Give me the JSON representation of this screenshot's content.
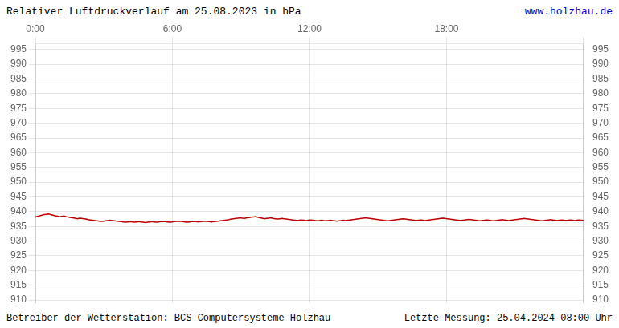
{
  "chart_data": {
    "type": "line",
    "title": "Relativer Luftdruckverlauf am 25.08.2023 in hPa",
    "annotations": [
      {
        "text": "www.holzhau.de",
        "color": "#0000cc"
      },
      {
        "text": "Betreiber der Wetterstation: BCS Computersysteme Holzhau"
      },
      {
        "text": "Letzte Messung: 25.04.2024 08:00 Uhr"
      }
    ],
    "color": "#bb0000",
    "grid": true,
    "xlim": [
      0,
      1440
    ],
    "xticks": [
      {
        "value": 0,
        "label": "0:00"
      },
      {
        "value": 360,
        "label": "6:00"
      },
      {
        "value": 720,
        "label": "12:00"
      },
      {
        "value": 1080,
        "label": "18:00"
      },
      {
        "value": 1440,
        "label": null
      }
    ],
    "ylim": [
      909,
      997
    ],
    "yticks": [
      910,
      915,
      920,
      925,
      930,
      935,
      940,
      945,
      950,
      955,
      960,
      965,
      970,
      975,
      980,
      985,
      990,
      995
    ],
    "y2lim": [
      909,
      997
    ],
    "y2ticks": [
      910,
      915,
      920,
      925,
      930,
      935,
      940,
      945,
      950,
      955,
      960,
      965,
      970,
      975,
      980,
      985,
      990,
      995
    ],
    "x": [
      0,
      5.78,
      11.57,
      17.35,
      23.13,
      28.92,
      34.7,
      40.48,
      46.27,
      52.05,
      57.83,
      63.61,
      69.4,
      75.18,
      80.96,
      86.75,
      92.53,
      98.31,
      104.1,
      109.88,
      115.66,
      121.45,
      127.23,
      133.01,
      138.8,
      144.58,
      150.36,
      156.14,
      161.93,
      167.71,
      173.49,
      179.28,
      185.06,
      190.84,
      196.63,
      202.41,
      208.19,
      213.98,
      219.76,
      225.54,
      231.33,
      237.11,
      242.89,
      248.67,
      254.46,
      260.24,
      266.02,
      271.81,
      277.59,
      283.37,
      289.16,
      294.94,
      300.72,
      306.51,
      312.29,
      318.07,
      323.86,
      329.64,
      335.42,
      341.2,
      346.99,
      352.77,
      358.55,
      364.34,
      370.12,
      375.9,
      381.69,
      387.47,
      393.25,
      399.04,
      404.82,
      410.6,
      416.39,
      422.17,
      427.95,
      433.73,
      439.52,
      445.3,
      451.08,
      456.87,
      462.65,
      468.43,
      474.22,
      480.0,
      485.78,
      491.57,
      497.35,
      503.13,
      508.92,
      514.7,
      520.48,
      526.27,
      532.05,
      537.83,
      543.61,
      549.4,
      555.18,
      560.96,
      566.75,
      572.53,
      578.31,
      584.1,
      589.88,
      595.66,
      601.45,
      607.23,
      613.01,
      618.8,
      624.58,
      630.36,
      636.14,
      641.93,
      647.71,
      653.49,
      659.28,
      665.06,
      670.84,
      676.63,
      682.41,
      688.19,
      693.98,
      699.76,
      705.54,
      711.33,
      717.11,
      722.89,
      728.67,
      734.46,
      740.24,
      746.02,
      751.81,
      757.59,
      763.37,
      769.16,
      774.94,
      780.72,
      786.51,
      792.29,
      798.07,
      803.86,
      809.64,
      815.42,
      821.2,
      826.99,
      832.77,
      838.55,
      844.34,
      850.12,
      855.9,
      861.69,
      867.47,
      873.25,
      879.04,
      884.82,
      890.6,
      896.39,
      902.17,
      907.95,
      913.73,
      919.52,
      925.3,
      931.08,
      936.87,
      942.65,
      948.43,
      954.22,
      960.0,
      965.78,
      971.57,
      977.35,
      983.13,
      988.92,
      994.7,
      1000.48,
      1006.27,
      1012.05,
      1017.83,
      1023.61,
      1029.4,
      1035.18,
      1040.96,
      1046.75,
      1052.53,
      1058.31,
      1064.1,
      1069.88,
      1075.66,
      1081.45,
      1087.23,
      1093.01,
      1098.8,
      1104.58,
      1110.36,
      1116.14,
      1121.93,
      1127.71,
      1133.49,
      1139.28,
      1145.06,
      1150.84,
      1156.63,
      1162.41,
      1168.19,
      1173.98,
      1179.76,
      1185.54,
      1191.33,
      1197.11,
      1202.89,
      1208.67,
      1214.46,
      1220.24,
      1226.02,
      1231.81,
      1237.59,
      1243.37,
      1249.16,
      1254.94,
      1260.72,
      1266.51,
      1272.29,
      1278.07,
      1283.86,
      1289.64,
      1295.42,
      1301.2,
      1306.99,
      1312.77,
      1318.55,
      1324.34,
      1330.12,
      1335.9,
      1341.69,
      1347.47,
      1353.25,
      1359.04,
      1364.82,
      1370.6,
      1376.39,
      1382.17,
      1387.95,
      1393.73,
      1399.52,
      1405.3,
      1411.08,
      1416.87,
      1422.65,
      1428.43,
      1434.22,
      1440
    ],
    "values": [
      938.2,
      938.4,
      938.6,
      938.8,
      939.0,
      939.1,
      939.2,
      939.0,
      938.8,
      938.6,
      938.5,
      938.3,
      938.4,
      938.5,
      938.3,
      938.2,
      938.0,
      937.9,
      937.8,
      937.6,
      937.8,
      937.7,
      937.6,
      937.5,
      937.3,
      937.2,
      937.1,
      937.0,
      936.9,
      936.8,
      936.7,
      936.8,
      936.9,
      937.0,
      937.1,
      937.0,
      936.9,
      936.8,
      936.7,
      936.6,
      936.5,
      936.4,
      936.5,
      936.6,
      936.5,
      936.4,
      936.5,
      936.6,
      936.5,
      936.4,
      936.3,
      936.4,
      936.5,
      936.6,
      936.5,
      936.4,
      936.5,
      936.6,
      936.7,
      936.6,
      936.5,
      936.4,
      936.5,
      936.6,
      936.7,
      936.8,
      936.7,
      936.6,
      936.5,
      936.4,
      936.5,
      936.6,
      936.7,
      936.6,
      936.5,
      936.6,
      936.7,
      936.8,
      936.7,
      936.6,
      936.5,
      936.6,
      936.7,
      936.8,
      936.9,
      937.0,
      937.1,
      937.2,
      937.3,
      937.5,
      937.6,
      937.7,
      937.8,
      937.9,
      937.8,
      937.7,
      937.9,
      938.0,
      938.1,
      938.2,
      938.3,
      938.1,
      937.9,
      937.8,
      937.6,
      937.7,
      937.8,
      937.9,
      937.7,
      937.6,
      937.5,
      937.6,
      937.7,
      937.6,
      937.5,
      937.4,
      937.3,
      937.2,
      937.1,
      937.0,
      937.1,
      937.2,
      937.1,
      937.0,
      937.1,
      937.2,
      937.1,
      937.0,
      936.9,
      937.0,
      937.1,
      937.0,
      936.9,
      937.0,
      937.1,
      937.0,
      936.9,
      936.8,
      936.9,
      937.0,
      937.1,
      937.0,
      937.1,
      937.2,
      937.3,
      937.4,
      937.5,
      937.6,
      937.7,
      937.8,
      937.9,
      937.8,
      937.7,
      937.6,
      937.5,
      937.4,
      937.3,
      937.2,
      937.1,
      937.0,
      936.9,
      937.0,
      937.1,
      937.2,
      937.3,
      937.4,
      937.5,
      937.6,
      937.5,
      937.4,
      937.3,
      937.2,
      937.1,
      937.0,
      937.1,
      937.2,
      937.1,
      937.0,
      937.1,
      937.2,
      937.3,
      937.4,
      937.5,
      937.6,
      937.7,
      937.8,
      937.7,
      937.6,
      937.5,
      937.4,
      937.3,
      937.2,
      937.1,
      937.0,
      937.1,
      937.2,
      937.3,
      937.4,
      937.3,
      937.2,
      937.1,
      937.0,
      936.9,
      937.0,
      937.1,
      937.2,
      937.1,
      937.0,
      936.9,
      937.0,
      937.1,
      937.2,
      937.3,
      937.2,
      937.1,
      937.0,
      937.1,
      937.2,
      937.3,
      937.4,
      937.5,
      937.6,
      937.7,
      937.6,
      937.5,
      937.4,
      937.3,
      937.2,
      937.1,
      937.0,
      936.9,
      937.0,
      937.1,
      937.2,
      937.3,
      937.2,
      937.1,
      937.0,
      937.1,
      937.2,
      937.1,
      937.0,
      937.1,
      937.2,
      937.1,
      937.0,
      937.1,
      937.2,
      937.1,
      937.0
    ]
  }
}
